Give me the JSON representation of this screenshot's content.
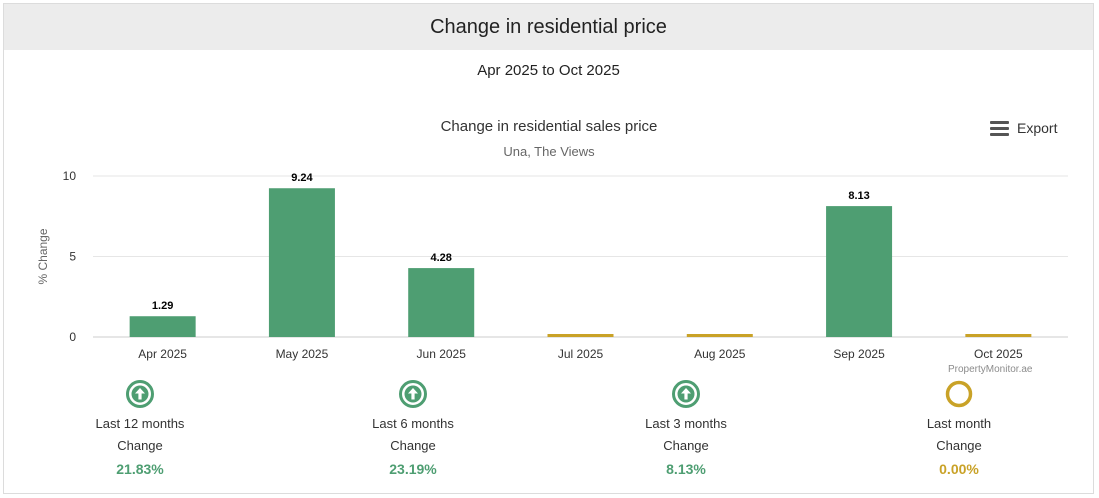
{
  "header": {
    "title": "Change in residential price"
  },
  "period": "Apr 2025 to Oct 2025",
  "export_label": "Export",
  "credit": "PropertyMonitor.ae",
  "colors": {
    "positive": "#4e9e72",
    "neutral": "#c9a227",
    "grid": "#e6e6e6",
    "axis": "#cccccc"
  },
  "chart_data": {
    "type": "bar",
    "title": "Change in residential sales price",
    "subtitle": "Una, The Views",
    "ylabel": "% Change",
    "xlabel": "",
    "categories": [
      "Apr 2025",
      "May 2025",
      "Jun 2025",
      "Jul 2025",
      "Aug 2025",
      "Sep 2025",
      "Oct 2025"
    ],
    "values": [
      1.29,
      9.24,
      4.28,
      0,
      0,
      8.13,
      0
    ],
    "data_labels": [
      "1.29",
      "9.24",
      "4.28",
      "",
      "",
      "8.13",
      ""
    ],
    "ylim": [
      0,
      10
    ],
    "yticks": [
      0,
      5,
      10
    ],
    "grid": true,
    "legend": "none"
  },
  "kpis": [
    {
      "icon": "arrow-up-circle-icon",
      "label": "Last 12 months",
      "sub": "Change",
      "value": "21.83%",
      "status": "positive"
    },
    {
      "icon": "arrow-up-circle-icon",
      "label": "Last 6 months",
      "sub": "Change",
      "value": "23.19%",
      "status": "positive"
    },
    {
      "icon": "arrow-up-circle-icon",
      "label": "Last 3 months",
      "sub": "Change",
      "value": "8.13%",
      "status": "positive"
    },
    {
      "icon": "neutral-circle-icon",
      "label": "Last month",
      "sub": "Change",
      "value": "0.00%",
      "status": "neutral"
    }
  ]
}
